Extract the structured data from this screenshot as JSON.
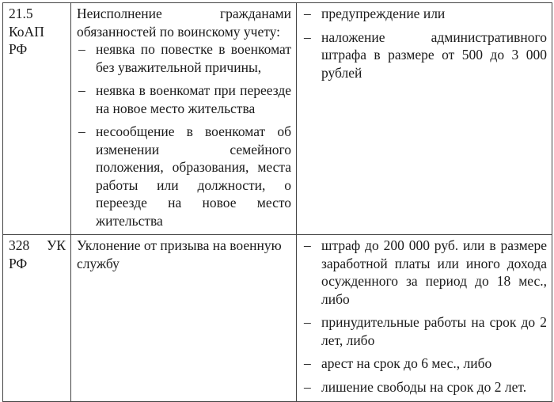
{
  "rows": [
    {
      "article": "21.5 КоАП РФ",
      "offense_intro": "Неисполнение гражданами обязанностей по воинскому учету:",
      "offense_items": [
        "неявка по повестке в военкомат без уважительной причины,",
        "неявка в военкомат при переезде на новое место жительства",
        "несообщение в военкомат об изменении семейного положения, образования, места работы или должности, о переезде на новое место жительства"
      ],
      "penalties": [
        "предупреждение или",
        "наложение административного штрафа в размере от 500 до 3 000 рублей"
      ]
    },
    {
      "article": "328 УК РФ",
      "offense_intro": "Уклонение от призыва на военную службу",
      "offense_items": [],
      "penalties": [
        "штраф до 200 000 руб. или в размере заработной платы или иного дохода осужденного за период до 18 мес., либо",
        "принудительные работы на срок до 2 лет, либо",
        "арест на срок до 6 мес., либо",
        "лишение свободы на срок до 2 лет."
      ]
    }
  ]
}
